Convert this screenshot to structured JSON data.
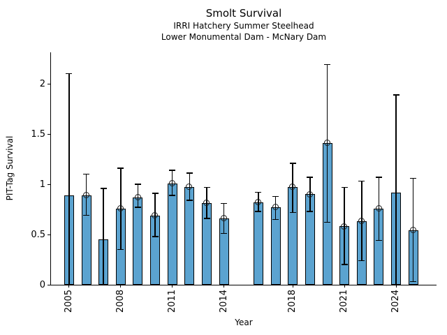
{
  "chart_data": {
    "type": "bar",
    "title": "Smolt Survival",
    "subtitle1": "IRRI Hatchery Summer Steelhead",
    "subtitle2": "Lower Monumental Dam - McNary Dam",
    "xlabel": "Year",
    "ylabel": "PIT-Tag Survival",
    "xlim": [
      2003.95,
      2026.35
    ],
    "ylim": [
      0,
      2.3125
    ],
    "yticks": [
      0,
      0.5,
      1,
      1.5,
      2
    ],
    "ytick_labels": [
      "0",
      "0.5",
      "1",
      "1.5",
      "2"
    ],
    "xticks": [
      2005,
      2008,
      2011,
      2014,
      2018,
      2021,
      2024
    ],
    "bar_color": "#5BA3D0",
    "bar_edge_color": "#000000",
    "errorbar_color": "#000000",
    "marker_edge_color": "#1a1a1a",
    "legend": "none",
    "grid": false,
    "series": [
      {
        "name": "PIT-Tag Survival",
        "points": [
          {
            "year": 2005,
            "value": 0.89,
            "lo": 0.0,
            "hi": 2.1,
            "marker": false,
            "lo_cap": false
          },
          {
            "year": 2006,
            "value": 0.89,
            "lo": 0.69,
            "hi": 1.1,
            "marker": true,
            "lo_cap": true
          },
          {
            "year": 2007,
            "value": 0.45,
            "lo": 0.0,
            "hi": 0.96,
            "marker": false,
            "lo_cap": false
          },
          {
            "year": 2008,
            "value": 0.76,
            "lo": 0.35,
            "hi": 1.16,
            "marker": true,
            "lo_cap": true
          },
          {
            "year": 2009,
            "value": 0.87,
            "lo": 0.77,
            "hi": 1.0,
            "marker": true,
            "lo_cap": true
          },
          {
            "year": 2010,
            "value": 0.69,
            "lo": 0.48,
            "hi": 0.91,
            "marker": true,
            "lo_cap": true
          },
          {
            "year": 2011,
            "value": 1.01,
            "lo": 0.89,
            "hi": 1.14,
            "marker": true,
            "lo_cap": true
          },
          {
            "year": 2012,
            "value": 0.97,
            "lo": 0.84,
            "hi": 1.11,
            "marker": true,
            "lo_cap": true
          },
          {
            "year": 2013,
            "value": 0.81,
            "lo": 0.66,
            "hi": 0.97,
            "marker": true,
            "lo_cap": true
          },
          {
            "year": 2014,
            "value": 0.66,
            "lo": 0.51,
            "hi": 0.81,
            "marker": true,
            "lo_cap": true
          },
          {
            "year": 2016,
            "value": 0.82,
            "lo": 0.73,
            "hi": 0.92,
            "marker": true,
            "lo_cap": true
          },
          {
            "year": 2017,
            "value": 0.77,
            "lo": 0.65,
            "hi": 0.88,
            "marker": true,
            "lo_cap": true
          },
          {
            "year": 2018,
            "value": 0.97,
            "lo": 0.72,
            "hi": 1.21,
            "marker": true,
            "lo_cap": true
          },
          {
            "year": 2019,
            "value": 0.9,
            "lo": 0.73,
            "hi": 1.07,
            "marker": true,
            "lo_cap": true
          },
          {
            "year": 2020,
            "value": 1.41,
            "lo": 0.62,
            "hi": 2.19,
            "marker": true,
            "lo_cap": true
          },
          {
            "year": 2021,
            "value": 0.58,
            "lo": 0.2,
            "hi": 0.97,
            "marker": true,
            "lo_cap": true
          },
          {
            "year": 2022,
            "value": 0.63,
            "lo": 0.24,
            "hi": 1.03,
            "marker": true,
            "lo_cap": true
          },
          {
            "year": 2023,
            "value": 0.76,
            "lo": 0.44,
            "hi": 1.07,
            "marker": true,
            "lo_cap": true
          },
          {
            "year": 2024,
            "value": 0.92,
            "lo": 0.0,
            "hi": 1.89,
            "marker": false,
            "lo_cap": false
          },
          {
            "year": 2025,
            "value": 0.54,
            "lo": 0.03,
            "hi": 1.06,
            "marker": true,
            "lo_cap": true
          }
        ]
      }
    ]
  }
}
